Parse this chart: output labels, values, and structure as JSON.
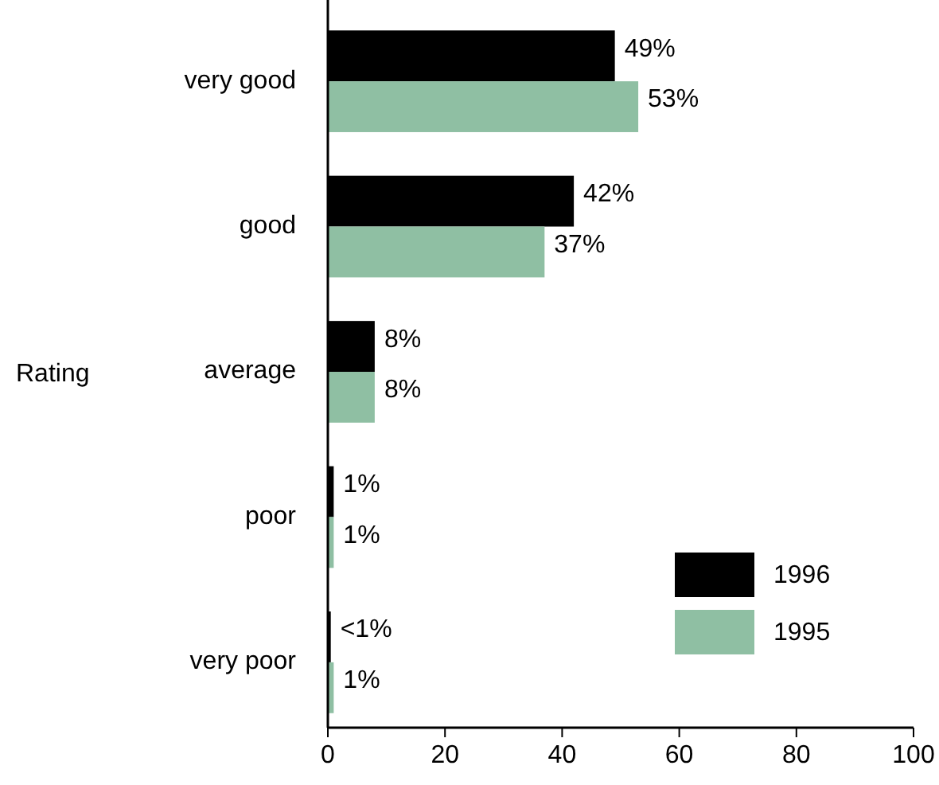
{
  "chart_data": {
    "type": "bar",
    "orientation": "horizontal",
    "ylabel": "Rating",
    "categories": [
      "very good",
      "good",
      "average",
      "poor",
      "very poor"
    ],
    "series": [
      {
        "name": "1996",
        "color": "#000000",
        "values": [
          49,
          42,
          8,
          1,
          0.5
        ],
        "value_labels": [
          "49%",
          "42%",
          "8%",
          "1%",
          "<1%"
        ]
      },
      {
        "name": "1995",
        "color": "#8fbfa3",
        "values": [
          53,
          37,
          8,
          1,
          1
        ],
        "value_labels": [
          "53%",
          "37%",
          "8%",
          "1%",
          "1%"
        ]
      }
    ],
    "xlim": [
      0,
      100
    ],
    "xticks": [
      0,
      20,
      40,
      60,
      80,
      100
    ],
    "legend": "bottom right"
  }
}
